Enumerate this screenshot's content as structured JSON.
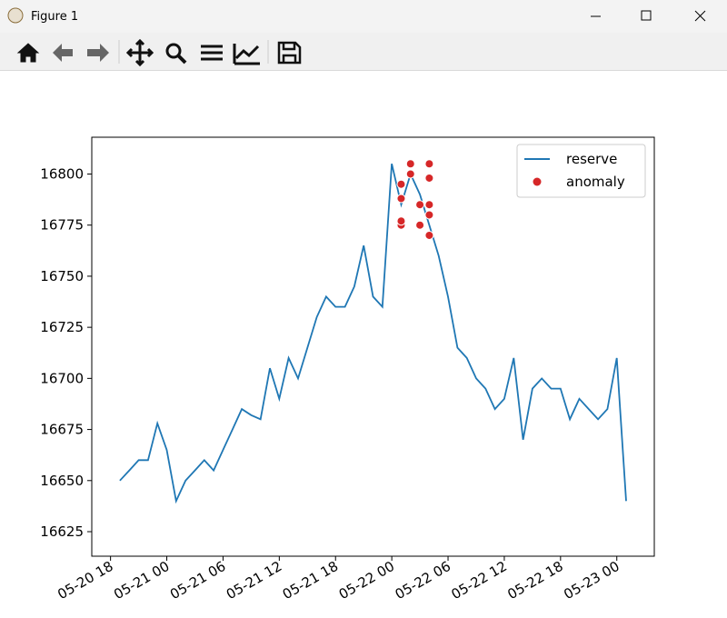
{
  "window": {
    "title": "Figure 1"
  },
  "chart_data": {
    "type": "line",
    "series": [
      {
        "name": "reserve",
        "type": "line",
        "color": "#1f77b4",
        "x": [
          "05-20 19",
          "05-20 20",
          "05-20 21",
          "05-20 22",
          "05-20 23",
          "05-21 00",
          "05-21 01",
          "05-21 02",
          "05-21 03",
          "05-21 04",
          "05-21 05",
          "05-21 06",
          "05-21 07",
          "05-21 08",
          "05-21 09",
          "05-21 10",
          "05-21 11",
          "05-21 12",
          "05-21 13",
          "05-21 14",
          "05-21 15",
          "05-21 16",
          "05-21 17",
          "05-21 18",
          "05-21 19",
          "05-21 20",
          "05-21 21",
          "05-21 22",
          "05-21 23",
          "05-22 00",
          "05-22 01",
          "05-22 02",
          "05-22 03",
          "05-22 04",
          "05-22 05",
          "05-22 06",
          "05-22 07",
          "05-22 08",
          "05-22 09",
          "05-22 10",
          "05-22 11",
          "05-22 12",
          "05-22 13",
          "05-22 14",
          "05-22 15",
          "05-22 16",
          "05-22 17",
          "05-22 18",
          "05-22 19",
          "05-22 20",
          "05-22 21",
          "05-22 22",
          "05-22 23",
          "05-23 00",
          "05-23 01"
        ],
        "values": [
          16650,
          16655,
          16660,
          16660,
          16678,
          16665,
          16640,
          16650,
          16655,
          16660,
          16655,
          16665,
          16675,
          16685,
          16682,
          16680,
          16705,
          16690,
          16710,
          16700,
          16715,
          16730,
          16740,
          16735,
          16735,
          16745,
          16765,
          16740,
          16735,
          16805,
          16785,
          16800,
          16790,
          16775,
          16760,
          16740,
          16715,
          16710,
          16700,
          16695,
          16685,
          16690,
          16710,
          16670,
          16695,
          16700,
          16695,
          16695,
          16680,
          16690,
          16685,
          16680,
          16685,
          16710,
          16640
        ]
      },
      {
        "name": "anomaly",
        "type": "scatter",
        "color": "#d62728",
        "x": [
          "05-22 01",
          "05-22 01",
          "05-22 01",
          "05-22 01",
          "05-22 02",
          "05-22 02",
          "05-22 03",
          "05-22 03",
          "05-22 04",
          "05-22 04",
          "05-22 04",
          "05-22 04",
          "05-22 04"
        ],
        "values": [
          16795,
          16788,
          16775,
          16777,
          16805,
          16800,
          16785,
          16775,
          16805,
          16798,
          16785,
          16780,
          16770
        ]
      }
    ],
    "xlim": [
      "05-20 16",
      "05-23 04"
    ],
    "xticks": [
      "05-20 18",
      "05-21 00",
      "05-21 06",
      "05-21 12",
      "05-21 18",
      "05-22 00",
      "05-22 06",
      "05-22 12",
      "05-22 18",
      "05-23 00"
    ],
    "ylim": [
      16613,
      16818
    ],
    "yticks": [
      16625,
      16650,
      16675,
      16700,
      16725,
      16750,
      16775,
      16800
    ],
    "legend": "upper right"
  }
}
